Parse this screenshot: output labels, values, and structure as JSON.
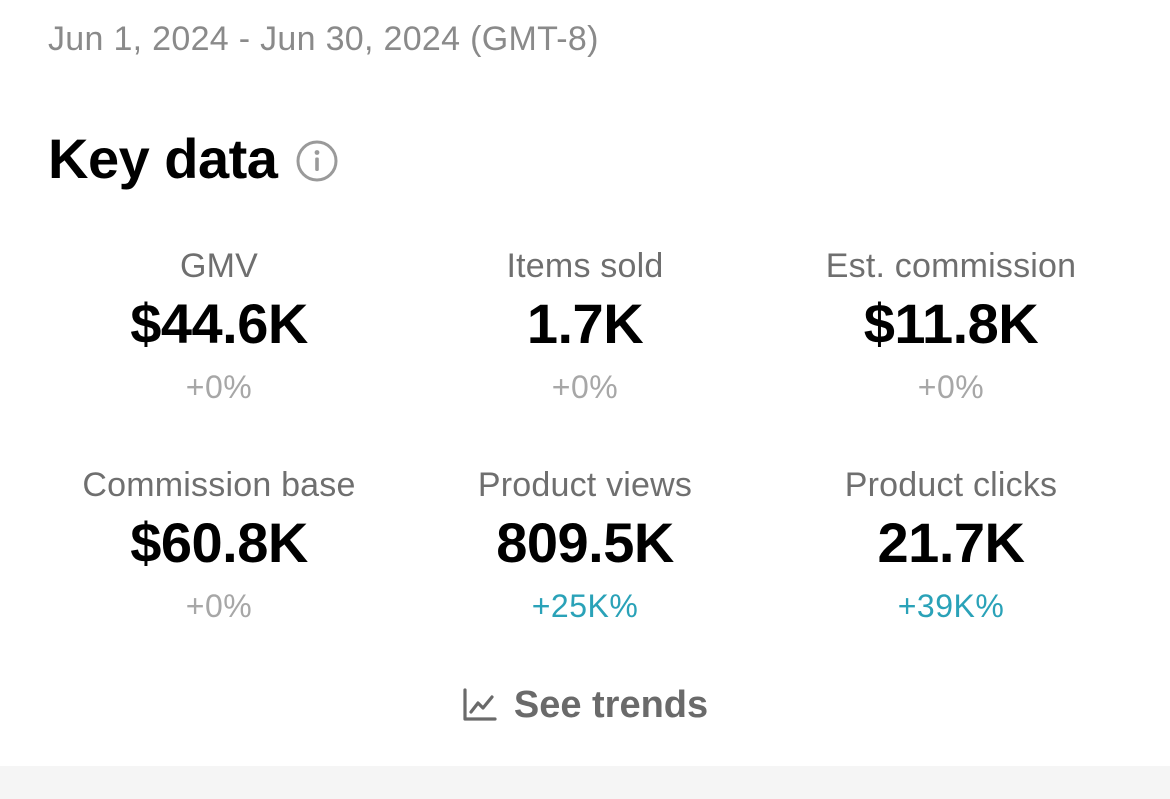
{
  "date_range": "Jun 1, 2024 - Jun 30, 2024 (GMT-8)",
  "section": {
    "title": "Key data",
    "info_icon": "info-circle-icon"
  },
  "metrics": [
    {
      "label": "GMV",
      "value": "$44.6K",
      "change": "+0%",
      "positive": false
    },
    {
      "label": "Items sold",
      "value": "1.7K",
      "change": "+0%",
      "positive": false
    },
    {
      "label": "Est. commission",
      "value": "$11.8K",
      "change": "+0%",
      "positive": false
    },
    {
      "label": "Commission base",
      "value": "$60.8K",
      "change": "+0%",
      "positive": false
    },
    {
      "label": "Product views",
      "value": "809.5K",
      "change": "+25K%",
      "positive": true
    },
    {
      "label": "Product clicks",
      "value": "21.7K",
      "change": "+39K%",
      "positive": true
    }
  ],
  "see_trends": {
    "label": "See trends",
    "icon": "line-chart-icon"
  },
  "colors": {
    "positive_change": "#2aa2b8",
    "neutral_change": "#a7a7a7",
    "label_gray": "#6f6f6f"
  }
}
